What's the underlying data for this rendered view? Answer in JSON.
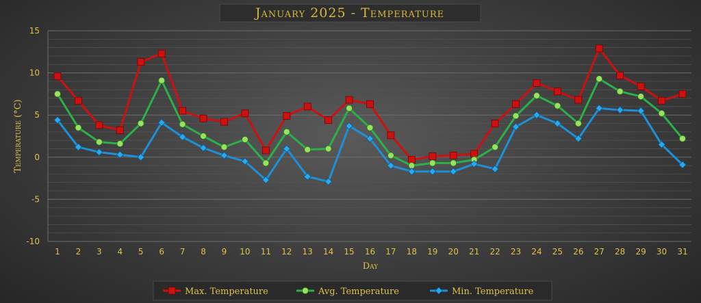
{
  "chart_data": {
    "type": "line",
    "title": "January 2025 - Temperature",
    "xlabel": "Day",
    "ylabel": "Temperature (°C)",
    "ylim": [
      -10,
      15
    ],
    "yticks": [
      -10,
      -5,
      0,
      5,
      10,
      15
    ],
    "grid": true,
    "legend_position": "bottom",
    "x": [
      1,
      2,
      3,
      4,
      5,
      6,
      7,
      8,
      9,
      10,
      11,
      12,
      13,
      14,
      15,
      16,
      17,
      18,
      19,
      20,
      21,
      22,
      23,
      24,
      25,
      26,
      27,
      28,
      29,
      30,
      31
    ],
    "series": [
      {
        "name": "Max. Temperature",
        "color": "#cc1111",
        "marker": "square",
        "values": [
          9.6,
          6.7,
          3.8,
          3.2,
          11.3,
          12.3,
          5.5,
          4.6,
          4.2,
          5.2,
          0.8,
          4.9,
          6.0,
          4.4,
          6.8,
          6.3,
          2.6,
          -0.3,
          0.1,
          0.2,
          0.4,
          4.0,
          6.3,
          8.8,
          7.8,
          6.8,
          12.9,
          9.7,
          8.4,
          6.7,
          7.5
        ]
      },
      {
        "name": "Avg. Temperature",
        "color": "#2bb04a",
        "marker": "circle",
        "values": [
          7.5,
          3.5,
          1.8,
          1.6,
          4.0,
          9.1,
          3.9,
          2.5,
          1.2,
          2.1,
          -0.7,
          3.0,
          0.9,
          1.0,
          5.8,
          3.5,
          0.2,
          -1.0,
          -0.7,
          -0.7,
          -0.3,
          1.2,
          4.9,
          7.3,
          6.1,
          4.0,
          9.3,
          7.8,
          7.2,
          5.2,
          2.2
        ]
      },
      {
        "name": "Min. Temperature",
        "color": "#1e90d8",
        "marker": "diamond",
        "values": [
          4.4,
          1.2,
          0.6,
          0.3,
          0.0,
          4.1,
          2.4,
          1.1,
          0.2,
          -0.5,
          -2.7,
          1.0,
          -2.3,
          -2.9,
          3.7,
          2.2,
          -1.0,
          -1.7,
          -1.7,
          -1.7,
          -0.8,
          -1.4,
          3.6,
          5.0,
          4.0,
          2.2,
          5.8,
          5.6,
          5.5,
          1.5,
          -0.9
        ]
      }
    ]
  }
}
